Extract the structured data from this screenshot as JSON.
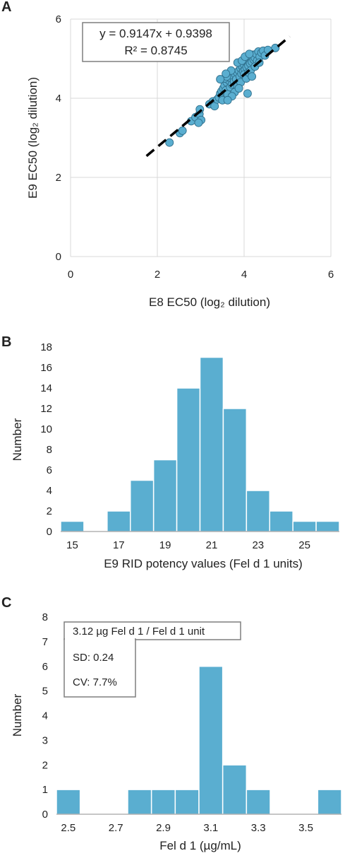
{
  "chart_data": [
    {
      "panel": "A",
      "type": "scatter",
      "xlabel": "E8 EC50 (log₂ dilution)",
      "ylabel": "E9 EC50 (log₂ dilution)",
      "xlim": [
        0,
        6
      ],
      "ylim": [
        0,
        6
      ],
      "xticks": [
        "0",
        "2",
        "4",
        "6"
      ],
      "yticks": [
        "0",
        "2",
        "4",
        "6"
      ],
      "grid": true,
      "point_color": "#5aaed0",
      "trendline": {
        "slope": 0.9147,
        "intercept": 0.9398,
        "x_range": [
          1.75,
          5.05
        ],
        "style": "dashed",
        "color": "#000000"
      },
      "equation": "y = 0.9147x + 0.9398",
      "r_squared": "R² = 0.8745",
      "points": [
        [
          2.28,
          2.88
        ],
        [
          2.52,
          3.12
        ],
        [
          2.58,
          3.18
        ],
        [
          2.78,
          3.42
        ],
        [
          2.88,
          3.52
        ],
        [
          2.97,
          3.6
        ],
        [
          2.98,
          3.72
        ],
        [
          3.01,
          3.45
        ],
        [
          2.95,
          3.38
        ],
        [
          3.2,
          3.85
        ],
        [
          3.28,
          3.92
        ],
        [
          3.32,
          3.8
        ],
        [
          3.38,
          3.97
        ],
        [
          3.42,
          4.02
        ],
        [
          3.45,
          4.12
        ],
        [
          3.48,
          4.18
        ],
        [
          3.5,
          3.95
        ],
        [
          3.52,
          4.25
        ],
        [
          3.55,
          4.32
        ],
        [
          3.58,
          4.2
        ],
        [
          3.6,
          4.4
        ],
        [
          3.62,
          4.1
        ],
        [
          3.65,
          4.45
        ],
        [
          3.68,
          4.28
        ],
        [
          3.7,
          4.5
        ],
        [
          3.72,
          4.35
        ],
        [
          3.75,
          4.55
        ],
        [
          3.77,
          4.42
        ],
        [
          3.8,
          4.6
        ],
        [
          3.82,
          4.48
        ],
        [
          3.84,
          4.65
        ],
        [
          3.85,
          4.3
        ],
        [
          3.88,
          4.7
        ],
        [
          3.9,
          4.55
        ],
        [
          3.92,
          4.75
        ],
        [
          3.94,
          4.62
        ],
        [
          3.96,
          4.8
        ],
        [
          3.98,
          4.68
        ],
        [
          4.0,
          4.85
        ],
        [
          4.02,
          4.72
        ],
        [
          4.04,
          4.9
        ],
        [
          4.06,
          4.78
        ],
        [
          4.08,
          4.95
        ],
        [
          4.1,
          4.82
        ],
        [
          4.12,
          5.0
        ],
        [
          4.14,
          4.88
        ],
        [
          4.16,
          5.05
        ],
        [
          4.18,
          4.92
        ],
        [
          4.2,
          5.1
        ],
        [
          4.22,
          4.98
        ],
        [
          4.25,
          5.02
        ],
        [
          4.28,
          5.12
        ],
        [
          4.3,
          4.95
        ],
        [
          4.33,
          5.18
        ],
        [
          4.36,
          5.05
        ],
        [
          4.4,
          5.15
        ],
        [
          4.44,
          5.2
        ],
        [
          4.48,
          5.08
        ],
        [
          4.55,
          5.22
        ],
        [
          4.72,
          5.27
        ],
        [
          3.55,
          4.5
        ],
        [
          3.6,
          4.55
        ],
        [
          3.7,
          4.7
        ],
        [
          3.78,
          4.15
        ],
        [
          3.85,
          4.9
        ],
        [
          3.92,
          4.4
        ],
        [
          4.0,
          4.6
        ],
        [
          4.05,
          4.5
        ],
        [
          4.1,
          4.65
        ],
        [
          4.15,
          4.7
        ],
        [
          3.45,
          4.48
        ],
        [
          3.58,
          4.62
        ],
        [
          4.08,
          4.12
        ],
        [
          4.18,
          4.55
        ],
        [
          4.25,
          4.8
        ],
        [
          4.35,
          4.9
        ],
        [
          3.95,
          4.95
        ],
        [
          4.02,
          5.05
        ],
        [
          4.12,
          5.12
        ],
        [
          3.88,
          4.25
        ],
        [
          3.72,
          4.05
        ],
        [
          3.62,
          3.95
        ]
      ]
    },
    {
      "panel": "B",
      "type": "bar",
      "xlabel": "E9 RID potency values (Fel d 1 units)",
      "ylabel": "Number",
      "ylim": [
        0,
        18
      ],
      "yticks": [
        "0",
        "2",
        "4",
        "6",
        "8",
        "10",
        "12",
        "14",
        "16",
        "18"
      ],
      "xticks": [
        "15",
        "17",
        "19",
        "21",
        "23",
        "25"
      ],
      "bin_width": 1,
      "bin_starts": [
        14.5,
        15.5,
        16.5,
        17.5,
        18.5,
        19.5,
        20.5,
        21.5,
        22.5,
        23.5,
        24.5,
        25.5
      ],
      "values": [
        1,
        0,
        2,
        5,
        7,
        14,
        17,
        12,
        4,
        2,
        1,
        1
      ],
      "bar_color": "#5aaed0",
      "grid": false
    },
    {
      "panel": "C",
      "type": "bar",
      "xlabel": "Fel d 1 (µg/mL)",
      "ylabel": "Number",
      "ylim": [
        0,
        8
      ],
      "yticks": [
        "0",
        "1",
        "2",
        "3",
        "4",
        "5",
        "6",
        "7",
        "8"
      ],
      "xticks": [
        "2.5",
        "2.7",
        "2.9",
        "3.1",
        "3.3",
        "3.5"
      ],
      "bin_width": 0.1,
      "bin_starts": [
        2.45,
        2.55,
        2.65,
        2.75,
        2.85,
        2.95,
        3.05,
        3.15,
        3.25,
        3.35,
        3.45,
        3.55
      ],
      "values": [
        1,
        0,
        0,
        1,
        1,
        1,
        6,
        2,
        1,
        0,
        0,
        1
      ],
      "bar_color": "#5aaed0",
      "grid": false,
      "annotations": [
        "3.12 µg Fel d 1 / Fel d 1 unit",
        "SD: 0.24",
        "CV: 7.7%"
      ]
    }
  ],
  "panel_letters": [
    "A",
    "B",
    "C"
  ]
}
